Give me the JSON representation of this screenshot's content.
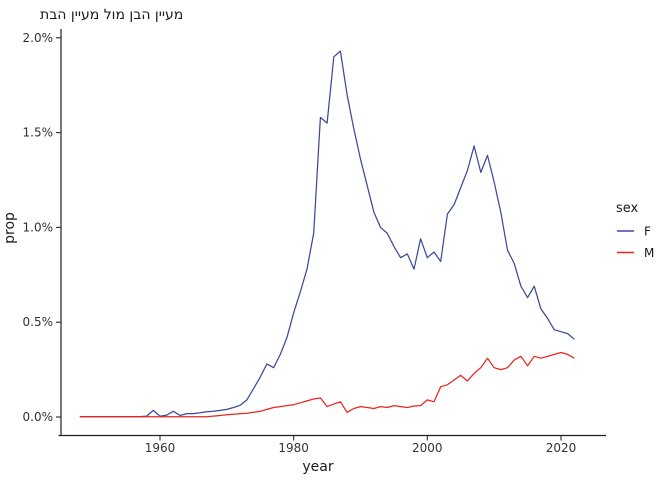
{
  "chart_data": {
    "type": "line",
    "title": "תבה ןייעמ לומ ןבה ןייעמ",
    "xlabel": "year",
    "ylabel": "prop",
    "legend_title": "sex",
    "legend_position": "right",
    "grid": false,
    "background": "#ffffff",
    "axis_color": "#1f1f1f",
    "xlim": [
      1945,
      2027
    ],
    "ylim_percent": [
      0.0,
      2.0
    ],
    "x_ticks": [
      1960,
      1980,
      2000,
      2020
    ],
    "y_tick_values": [
      0.0,
      0.5,
      1.0,
      1.5,
      2.0
    ],
    "y_tick_labels": [
      "0.0%",
      "0.5%",
      "1.0%",
      "1.5%",
      "2.0%"
    ],
    "x": [
      1948,
      1949,
      1950,
      1951,
      1952,
      1953,
      1954,
      1955,
      1956,
      1957,
      1958,
      1959,
      1960,
      1961,
      1962,
      1963,
      1964,
      1965,
      1966,
      1967,
      1968,
      1969,
      1970,
      1971,
      1972,
      1973,
      1974,
      1975,
      1976,
      1977,
      1978,
      1979,
      1980,
      1981,
      1982,
      1983,
      1984,
      1985,
      1986,
      1987,
      1988,
      1989,
      1990,
      1991,
      1992,
      1993,
      1994,
      1995,
      1996,
      1997,
      1998,
      1999,
      2000,
      2001,
      2002,
      2003,
      2004,
      2005,
      2006,
      2007,
      2008,
      2009,
      2010,
      2011,
      2012,
      2013,
      2014,
      2015,
      2016,
      2017,
      2018,
      2019,
      2020,
      2021,
      2022
    ],
    "series": [
      {
        "name": "F",
        "color": "#3A4A9D",
        "values_percent": [
          0.002,
          0.002,
          0.002,
          0.002,
          0.002,
          0.002,
          0.002,
          0.002,
          0.002,
          0.002,
          0.005,
          0.035,
          0.004,
          0.01,
          0.03,
          0.008,
          0.018,
          0.018,
          0.022,
          0.028,
          0.03,
          0.035,
          0.04,
          0.05,
          0.062,
          0.09,
          0.15,
          0.21,
          0.28,
          0.26,
          0.33,
          0.42,
          0.55,
          0.66,
          0.78,
          0.97,
          1.58,
          1.55,
          1.9,
          1.93,
          1.7,
          1.52,
          1.36,
          1.22,
          1.08,
          1.0,
          0.97,
          0.9,
          0.84,
          0.86,
          0.78,
          0.94,
          0.84,
          0.87,
          0.82,
          1.07,
          1.12,
          1.21,
          1.3,
          1.43,
          1.29,
          1.38,
          1.24,
          1.08,
          0.88,
          0.81,
          0.69,
          0.63,
          0.69,
          0.57,
          0.52,
          0.46,
          0.45,
          0.44,
          0.41
        ]
      },
      {
        "name": "M",
        "color": "#E8251D",
        "values_percent": [
          0.001,
          0.001,
          0.001,
          0.001,
          0.001,
          0.001,
          0.001,
          0.001,
          0.001,
          0.001,
          0.001,
          0.001,
          0.001,
          0.001,
          0.001,
          0.001,
          0.001,
          0.001,
          0.001,
          0.001,
          0.005,
          0.008,
          0.012,
          0.015,
          0.018,
          0.02,
          0.025,
          0.03,
          0.04,
          0.05,
          0.055,
          0.06,
          0.065,
          0.075,
          0.085,
          0.095,
          0.1,
          0.055,
          0.068,
          0.08,
          0.025,
          0.045,
          0.055,
          0.05,
          0.045,
          0.055,
          0.05,
          0.06,
          0.055,
          0.05,
          0.058,
          0.06,
          0.09,
          0.08,
          0.16,
          0.17,
          0.195,
          0.22,
          0.19,
          0.23,
          0.26,
          0.31,
          0.26,
          0.25,
          0.26,
          0.3,
          0.32,
          0.27,
          0.32,
          0.31,
          0.32,
          0.33,
          0.34,
          0.33,
          0.31
        ]
      }
    ]
  }
}
